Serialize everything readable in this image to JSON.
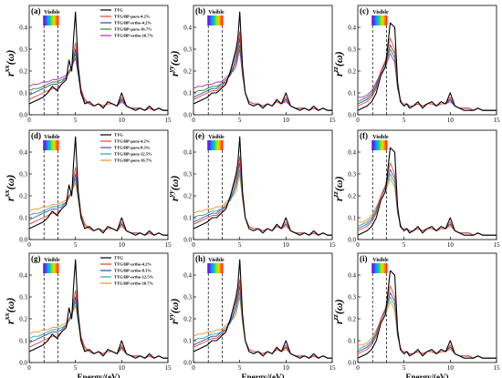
{
  "colors": {
    "TTG": "#000000",
    "series2": "#e8402d",
    "series3": "#2a47a5",
    "series4": "#2e8b22",
    "series5": "#b027c7",
    "series_para2": "#e8402d",
    "series_para3": "#3955b2",
    "series_para4": "#2aa3a0",
    "series_para5": "#f0902a",
    "series_ortho4": "#2aa9b4"
  },
  "legends": {
    "a": [
      "TTG",
      "TTG/BP-para-4.2%",
      "TTG/BP-ortho-4.2%",
      "TTG/BP-para-16.7%",
      "TTG/BP-ortho-16.7%"
    ],
    "d": [
      "TTG",
      "TTG/BP-para-4.2%",
      "TTG/BP-para-8.3%",
      "TTG/BP-para-12.5%",
      "TTG/BP-para-16.7%"
    ],
    "g": [
      "TTG",
      "TTG/BP-ortho-4.2%",
      "TTG/BP-ortho-8.3%",
      "TTG/BP-ortho-12.5%",
      "TTG/BP-ortho-16.7%"
    ]
  },
  "visible_label": "Visible",
  "xlabel": "Energy/(eV)",
  "y_base": "r",
  "y_paren": "(ω)",
  "panels": [
    {
      "id": "a",
      "tag": "(a)",
      "sup": "xx",
      "legend": "a"
    },
    {
      "id": "b",
      "tag": "(b)",
      "sup": "yy"
    },
    {
      "id": "c",
      "tag": "(c)",
      "sup": "zz"
    },
    {
      "id": "d",
      "tag": "(d)",
      "sup": "xx",
      "legend": "d"
    },
    {
      "id": "e",
      "tag": "(e)",
      "sup": "yy"
    },
    {
      "id": "f",
      "tag": "(f)",
      "sup": "zz"
    },
    {
      "id": "g",
      "tag": "(g)",
      "sup": "xx",
      "legend": "g"
    },
    {
      "id": "h",
      "tag": "(h)",
      "sup": "yy"
    },
    {
      "id": "i",
      "tag": "(i)",
      "sup": "zz"
    }
  ],
  "chart_data": {
    "type": "line",
    "xlim": [
      0,
      15
    ],
    "ylim": [
      0,
      0.5
    ],
    "xticks": [
      "0",
      "5",
      "10",
      "15"
    ],
    "yticks": [
      "0.0",
      "0.1",
      "0.2",
      "0.3",
      "0.4"
    ],
    "visible_band_eV": [
      1.6,
      3.1
    ],
    "x": [
      0,
      0.5,
      1,
      1.5,
      2,
      2.5,
      3,
      3.5,
      4,
      4.3,
      4.6,
      4.8,
      5,
      5.3,
      5.6,
      6,
      6.5,
      7,
      7.5,
      8,
      8.5,
      9,
      9.5,
      10,
      10.5,
      11,
      11.5,
      12,
      12.5,
      13,
      13.5,
      14,
      14.5,
      15
    ],
    "series_xx": [
      [
        0.05,
        0.06,
        0.07,
        0.08,
        0.1,
        0.13,
        0.11,
        0.14,
        0.16,
        0.25,
        0.2,
        0.35,
        0.47,
        0.22,
        0.1,
        0.05,
        0.06,
        0.04,
        0.05,
        0.03,
        0.06,
        0.05,
        0.04,
        0.1,
        0.04,
        0.03,
        0.02,
        0.03,
        0.02,
        0.04,
        0.02,
        0.03,
        0.02,
        0.02
      ],
      [
        0.07,
        0.08,
        0.09,
        0.1,
        0.11,
        0.12,
        0.12,
        0.14,
        0.16,
        0.2,
        0.22,
        0.28,
        0.33,
        0.22,
        0.12,
        0.07,
        0.05,
        0.04,
        0.05,
        0.04,
        0.05,
        0.05,
        0.04,
        0.08,
        0.04,
        0.03,
        0.03,
        0.03,
        0.02,
        0.03,
        0.02,
        0.03,
        0.02,
        0.02
      ],
      [
        0.09,
        0.1,
        0.11,
        0.12,
        0.13,
        0.14,
        0.14,
        0.15,
        0.17,
        0.2,
        0.21,
        0.26,
        0.3,
        0.2,
        0.11,
        0.07,
        0.05,
        0.04,
        0.05,
        0.04,
        0.05,
        0.05,
        0.04,
        0.07,
        0.04,
        0.03,
        0.03,
        0.03,
        0.02,
        0.03,
        0.02,
        0.03,
        0.02,
        0.02
      ],
      [
        0.11,
        0.12,
        0.12,
        0.13,
        0.14,
        0.15,
        0.15,
        0.16,
        0.17,
        0.19,
        0.21,
        0.25,
        0.28,
        0.19,
        0.11,
        0.07,
        0.05,
        0.04,
        0.05,
        0.04,
        0.05,
        0.05,
        0.04,
        0.07,
        0.04,
        0.03,
        0.03,
        0.03,
        0.02,
        0.03,
        0.02,
        0.03,
        0.02,
        0.02
      ],
      [
        0.13,
        0.14,
        0.14,
        0.15,
        0.15,
        0.16,
        0.16,
        0.17,
        0.18,
        0.2,
        0.22,
        0.24,
        0.26,
        0.18,
        0.1,
        0.06,
        0.05,
        0.04,
        0.05,
        0.04,
        0.05,
        0.05,
        0.04,
        0.06,
        0.04,
        0.03,
        0.03,
        0.03,
        0.02,
        0.03,
        0.02,
        0.03,
        0.02,
        0.02
      ]
    ],
    "series_yy": [
      [
        0.05,
        0.06,
        0.07,
        0.08,
        0.1,
        0.1,
        0.12,
        0.14,
        0.2,
        0.25,
        0.3,
        0.35,
        0.47,
        0.22,
        0.1,
        0.05,
        0.04,
        0.05,
        0.03,
        0.05,
        0.04,
        0.07,
        0.05,
        0.1,
        0.04,
        0.03,
        0.02,
        0.03,
        0.02,
        0.04,
        0.02,
        0.03,
        0.02,
        0.02
      ],
      [
        0.07,
        0.08,
        0.09,
        0.1,
        0.11,
        0.11,
        0.13,
        0.15,
        0.2,
        0.24,
        0.28,
        0.32,
        0.38,
        0.2,
        0.1,
        0.06,
        0.05,
        0.05,
        0.04,
        0.05,
        0.04,
        0.06,
        0.05,
        0.08,
        0.04,
        0.03,
        0.03,
        0.03,
        0.02,
        0.03,
        0.02,
        0.03,
        0.02,
        0.02
      ],
      [
        0.08,
        0.09,
        0.1,
        0.11,
        0.12,
        0.12,
        0.14,
        0.15,
        0.19,
        0.22,
        0.26,
        0.3,
        0.35,
        0.2,
        0.1,
        0.06,
        0.05,
        0.05,
        0.04,
        0.05,
        0.04,
        0.06,
        0.05,
        0.07,
        0.04,
        0.03,
        0.03,
        0.03,
        0.02,
        0.03,
        0.02,
        0.03,
        0.02,
        0.02
      ],
      [
        0.1,
        0.11,
        0.11,
        0.12,
        0.13,
        0.13,
        0.14,
        0.16,
        0.18,
        0.21,
        0.24,
        0.28,
        0.32,
        0.19,
        0.1,
        0.06,
        0.05,
        0.05,
        0.04,
        0.05,
        0.04,
        0.06,
        0.05,
        0.07,
        0.04,
        0.03,
        0.03,
        0.03,
        0.02,
        0.03,
        0.02,
        0.03,
        0.02,
        0.02
      ],
      [
        0.12,
        0.13,
        0.13,
        0.14,
        0.14,
        0.15,
        0.15,
        0.17,
        0.19,
        0.2,
        0.22,
        0.26,
        0.3,
        0.18,
        0.1,
        0.06,
        0.05,
        0.05,
        0.04,
        0.05,
        0.04,
        0.06,
        0.05,
        0.06,
        0.04,
        0.03,
        0.03,
        0.03,
        0.02,
        0.03,
        0.02,
        0.03,
        0.02,
        0.02
      ]
    ],
    "series_zz": [
      [
        0.02,
        0.03,
        0.04,
        0.06,
        0.1,
        0.18,
        0.22,
        0.42,
        0.4,
        0.15,
        0.06,
        0.05,
        0.04,
        0.05,
        0.03,
        0.04,
        0.06,
        0.03,
        0.05,
        0.06,
        0.04,
        0.06,
        0.05,
        0.1,
        0.04,
        0.03,
        0.02,
        0.02,
        0.02,
        0.03,
        0.02,
        0.02,
        0.02,
        0.02
      ],
      [
        0.04,
        0.05,
        0.06,
        0.08,
        0.12,
        0.2,
        0.25,
        0.35,
        0.3,
        0.14,
        0.07,
        0.05,
        0.05,
        0.05,
        0.04,
        0.04,
        0.05,
        0.04,
        0.05,
        0.05,
        0.04,
        0.05,
        0.05,
        0.08,
        0.04,
        0.03,
        0.03,
        0.03,
        0.02,
        0.03,
        0.02,
        0.02,
        0.02,
        0.02
      ],
      [
        0.05,
        0.06,
        0.07,
        0.09,
        0.13,
        0.2,
        0.24,
        0.32,
        0.28,
        0.13,
        0.07,
        0.05,
        0.05,
        0.05,
        0.04,
        0.04,
        0.05,
        0.04,
        0.05,
        0.05,
        0.04,
        0.05,
        0.05,
        0.07,
        0.04,
        0.03,
        0.03,
        0.03,
        0.02,
        0.03,
        0.02,
        0.02,
        0.02,
        0.02
      ],
      [
        0.06,
        0.07,
        0.08,
        0.1,
        0.14,
        0.2,
        0.23,
        0.3,
        0.26,
        0.12,
        0.07,
        0.05,
        0.05,
        0.05,
        0.04,
        0.04,
        0.05,
        0.04,
        0.05,
        0.05,
        0.04,
        0.05,
        0.05,
        0.07,
        0.04,
        0.03,
        0.03,
        0.03,
        0.02,
        0.03,
        0.02,
        0.02,
        0.02,
        0.02
      ],
      [
        0.08,
        0.08,
        0.09,
        0.11,
        0.15,
        0.19,
        0.22,
        0.28,
        0.24,
        0.12,
        0.07,
        0.05,
        0.05,
        0.05,
        0.04,
        0.04,
        0.05,
        0.04,
        0.05,
        0.05,
        0.04,
        0.05,
        0.05,
        0.06,
        0.04,
        0.03,
        0.03,
        0.03,
        0.02,
        0.03,
        0.02,
        0.02,
        0.02,
        0.02
      ]
    ]
  }
}
